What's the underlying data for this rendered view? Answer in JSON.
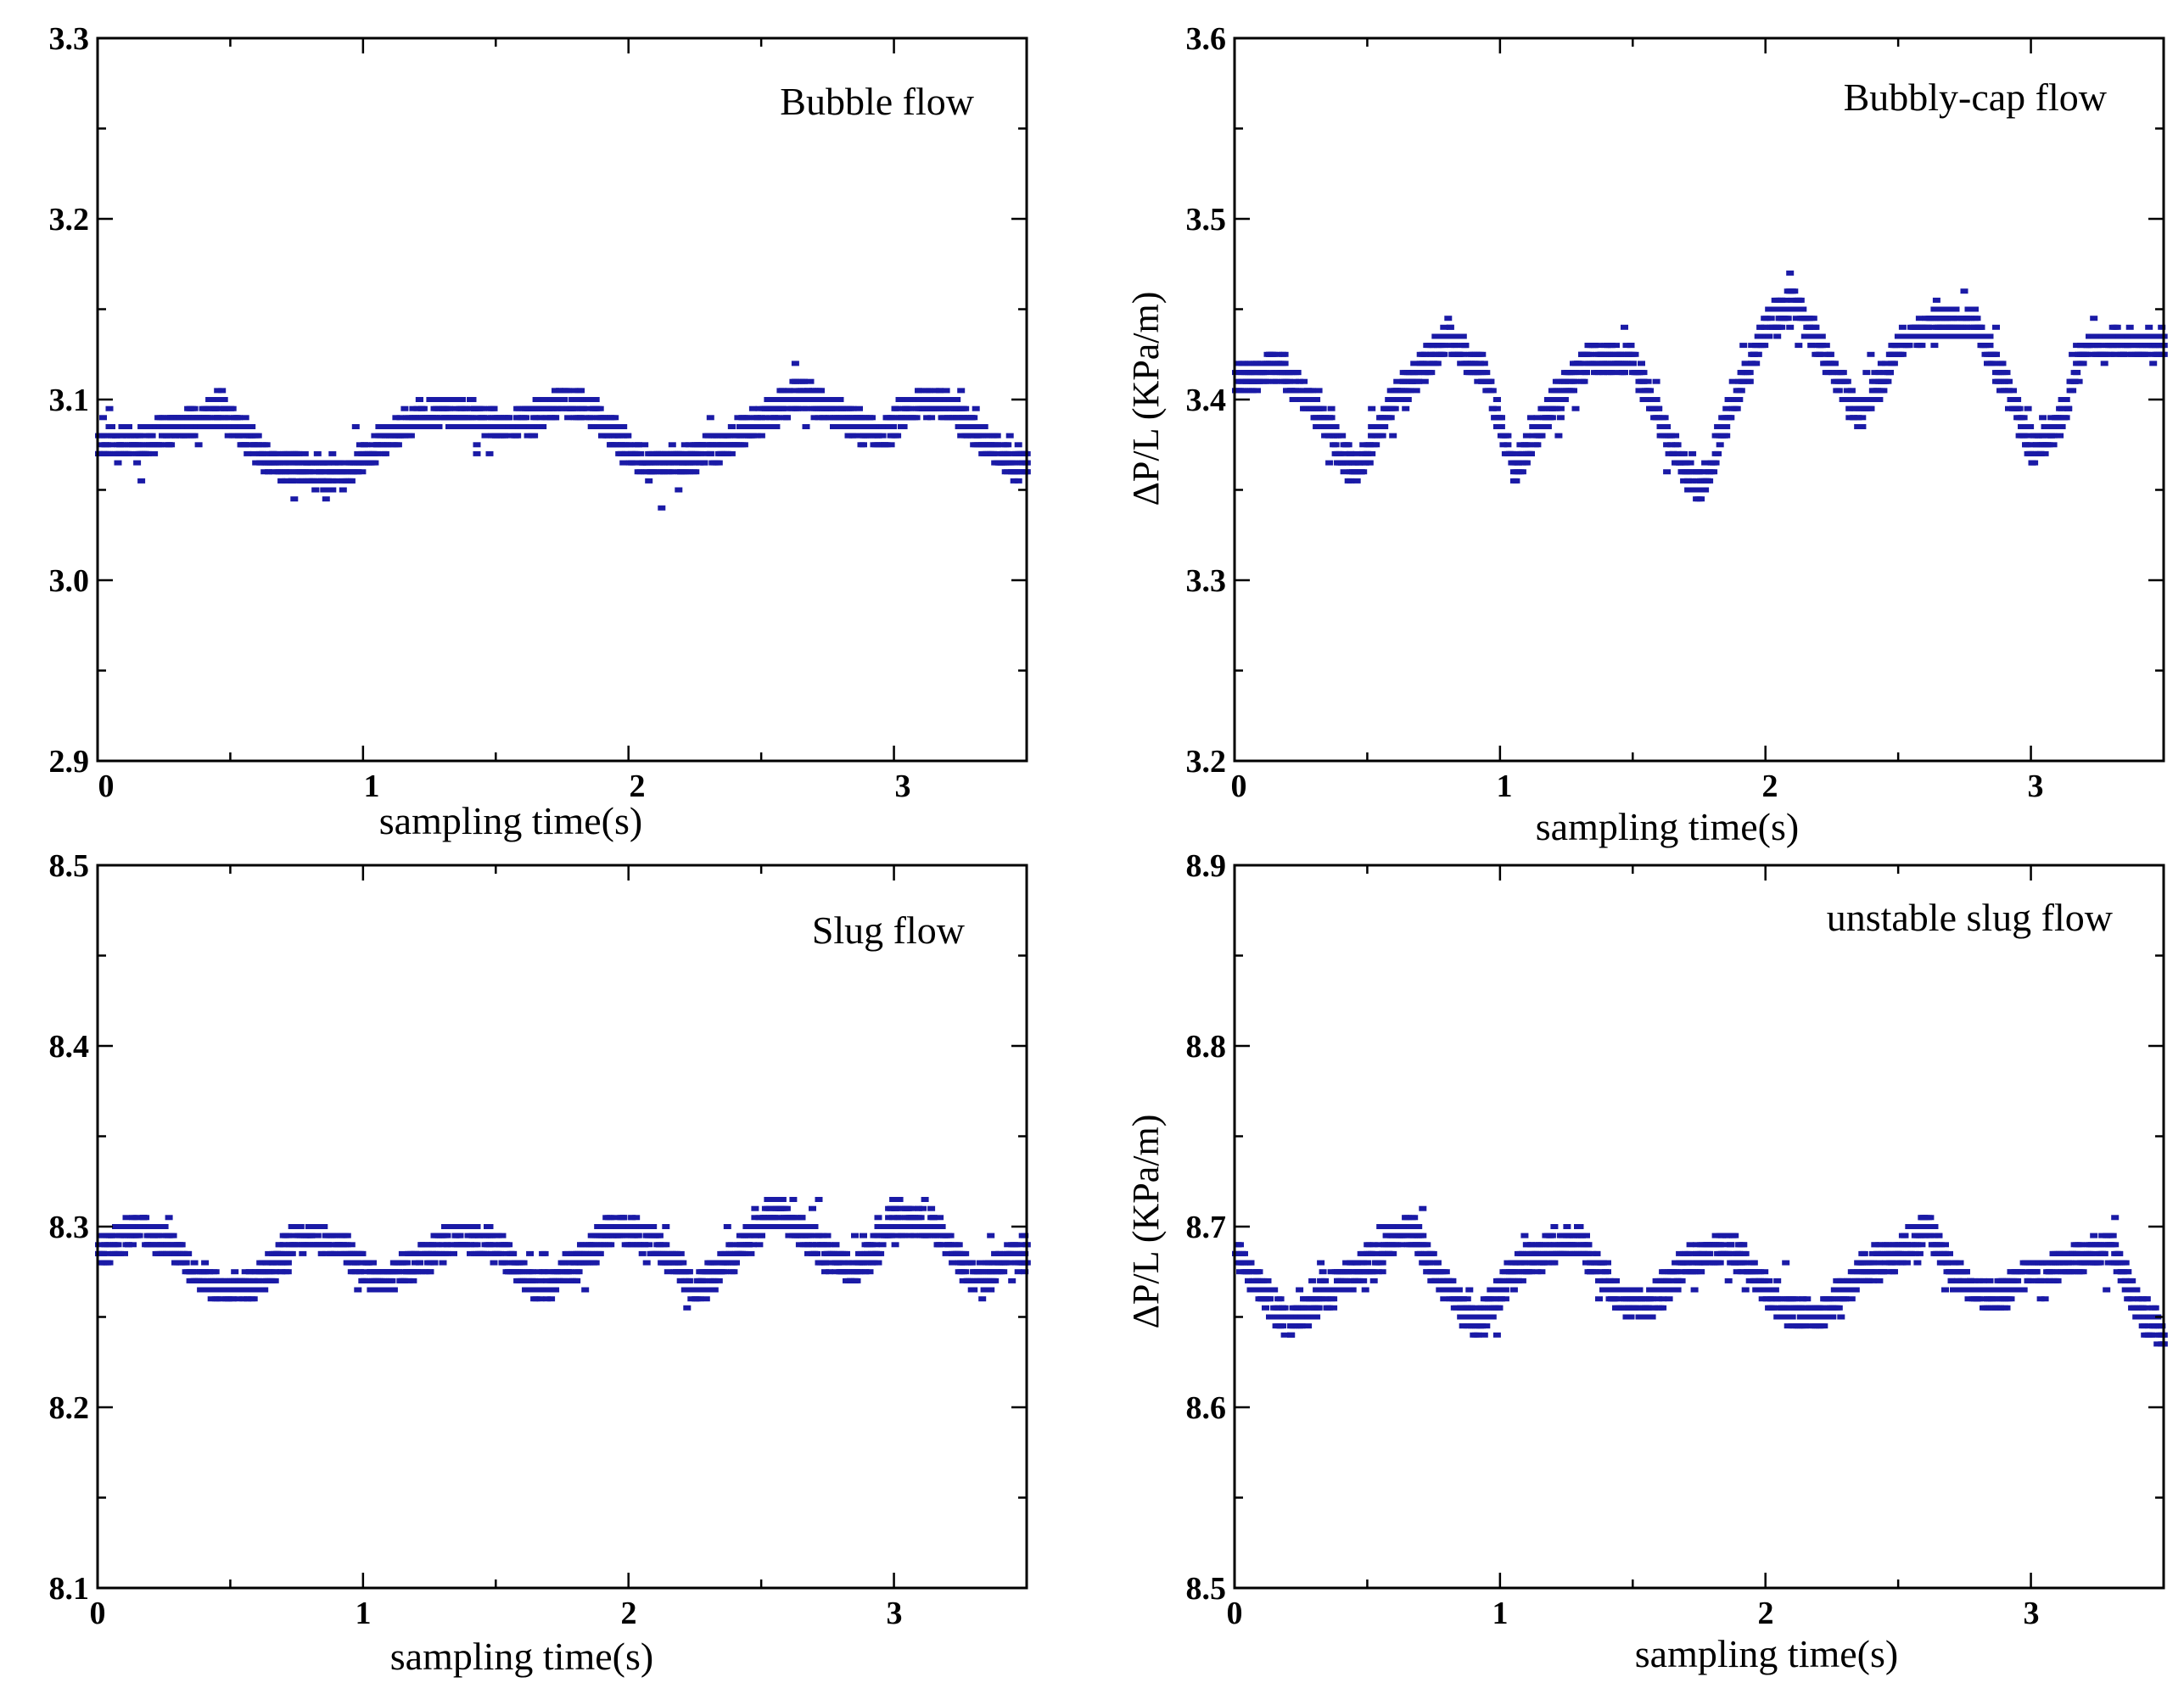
{
  "chart_data": [
    {
      "type": "scatter",
      "title": "Bubble flow",
      "xlabel": "sampling time(s)",
      "ylabel": "",
      "xlim": [
        0,
        3.5
      ],
      "ylim": [
        2.9,
        3.3
      ],
      "xticks": [
        "0",
        "1",
        "2",
        "3"
      ],
      "yticks": [
        "2.9",
        "3.0",
        "3.1",
        "3.2",
        "3.3"
      ],
      "color": "#1a1aa6",
      "series": [
        {
          "name": "ΔP/L",
          "x": [
            0.0,
            0.15,
            0.3,
            0.45,
            0.55,
            0.65,
            0.8,
            0.95,
            1.05,
            1.2,
            1.35,
            1.5,
            1.65,
            1.75,
            1.85,
            1.95,
            2.05,
            2.2,
            2.35,
            2.5,
            2.65,
            2.8,
            2.95,
            3.05,
            3.15,
            3.25,
            3.35,
            3.45
          ],
          "y": [
            3.075,
            3.075,
            3.085,
            3.095,
            3.08,
            3.065,
            3.06,
            3.06,
            3.075,
            3.09,
            3.095,
            3.085,
            3.09,
            3.1,
            3.095,
            3.08,
            3.065,
            3.065,
            3.075,
            3.09,
            3.105,
            3.09,
            3.08,
            3.095,
            3.1,
            3.09,
            3.075,
            3.065
          ]
        }
      ]
    },
    {
      "type": "scatter",
      "title": "Bubbly-cap flow",
      "xlabel": "sampling time(s)",
      "ylabel": "ΔP/L (KPa/m)",
      "xlim": [
        0,
        3.5
      ],
      "ylim": [
        3.2,
        3.6
      ],
      "xticks": [
        "0",
        "1",
        "2",
        "3"
      ],
      "yticks": [
        "3.2",
        "3.3",
        "3.4",
        "3.5",
        "3.6"
      ],
      "color": "#1a1aa6",
      "series": [
        {
          "name": "ΔP/L",
          "x": [
            0.0,
            0.15,
            0.3,
            0.45,
            0.6,
            0.8,
            0.95,
            1.05,
            1.2,
            1.35,
            1.5,
            1.65,
            1.75,
            1.85,
            2.0,
            2.1,
            2.2,
            2.35,
            2.5,
            2.65,
            2.8,
            2.95,
            3.0,
            3.1,
            3.2,
            3.35,
            3.5
          ],
          "y": [
            3.41,
            3.42,
            3.395,
            3.36,
            3.4,
            3.435,
            3.41,
            3.36,
            3.4,
            3.425,
            3.42,
            3.37,
            3.35,
            3.39,
            3.44,
            3.455,
            3.43,
            3.39,
            3.43,
            3.445,
            3.44,
            3.39,
            3.37,
            3.385,
            3.43,
            3.43,
            3.43
          ]
        }
      ]
    },
    {
      "type": "scatter",
      "title": "Slug flow",
      "xlabel": "sampling time(s)",
      "ylabel": "",
      "xlim": [
        0,
        3.5
      ],
      "ylim": [
        8.1,
        8.5
      ],
      "xticks": [
        "0",
        "1",
        "2",
        "3"
      ],
      "yticks": [
        "8.1",
        "8.2",
        "8.3",
        "8.4",
        "8.5"
      ],
      "color": "#1a1aa6",
      "series": [
        {
          "name": "ΔP/L",
          "x": [
            0.0,
            0.15,
            0.3,
            0.45,
            0.6,
            0.75,
            0.9,
            1.05,
            1.2,
            1.35,
            1.5,
            1.65,
            1.8,
            1.95,
            2.1,
            2.25,
            2.4,
            2.55,
            2.7,
            2.85,
            3.0,
            3.15,
            3.3,
            3.45
          ],
          "y": [
            8.285,
            8.3,
            8.285,
            8.265,
            8.27,
            8.295,
            8.29,
            8.27,
            8.28,
            8.295,
            8.29,
            8.265,
            8.28,
            8.3,
            8.29,
            8.265,
            8.285,
            8.31,
            8.29,
            8.275,
            8.305,
            8.3,
            8.27,
            8.285
          ]
        }
      ]
    },
    {
      "type": "scatter",
      "title": "unstable slug flow",
      "xlabel": "sampling time(s)",
      "ylabel": "ΔP/L (KPa/m)",
      "xlim": [
        0,
        3.5
      ],
      "ylim": [
        8.5,
        8.9
      ],
      "xticks": [
        "0",
        "1",
        "2",
        "3"
      ],
      "yticks": [
        "8.5",
        "8.6",
        "8.7",
        "8.8",
        "8.9"
      ],
      "color": "#1a1aa6",
      "series": [
        {
          "name": "ΔP/L",
          "x": [
            0.0,
            0.1,
            0.2,
            0.35,
            0.5,
            0.65,
            0.8,
            0.9,
            1.05,
            1.2,
            1.3,
            1.45,
            1.55,
            1.7,
            1.85,
            1.95,
            2.05,
            2.2,
            2.35,
            2.5,
            2.6,
            2.7,
            2.85,
            3.0,
            3.15,
            3.3,
            3.4,
            3.5
          ],
          "y": [
            8.685,
            8.665,
            8.645,
            8.665,
            8.68,
            8.7,
            8.665,
            8.645,
            8.675,
            8.69,
            8.69,
            8.66,
            8.655,
            8.68,
            8.69,
            8.675,
            8.655,
            8.65,
            8.675,
            8.685,
            8.7,
            8.675,
            8.66,
            8.675,
            8.68,
            8.69,
            8.655,
            8.64
          ]
        }
      ]
    }
  ]
}
